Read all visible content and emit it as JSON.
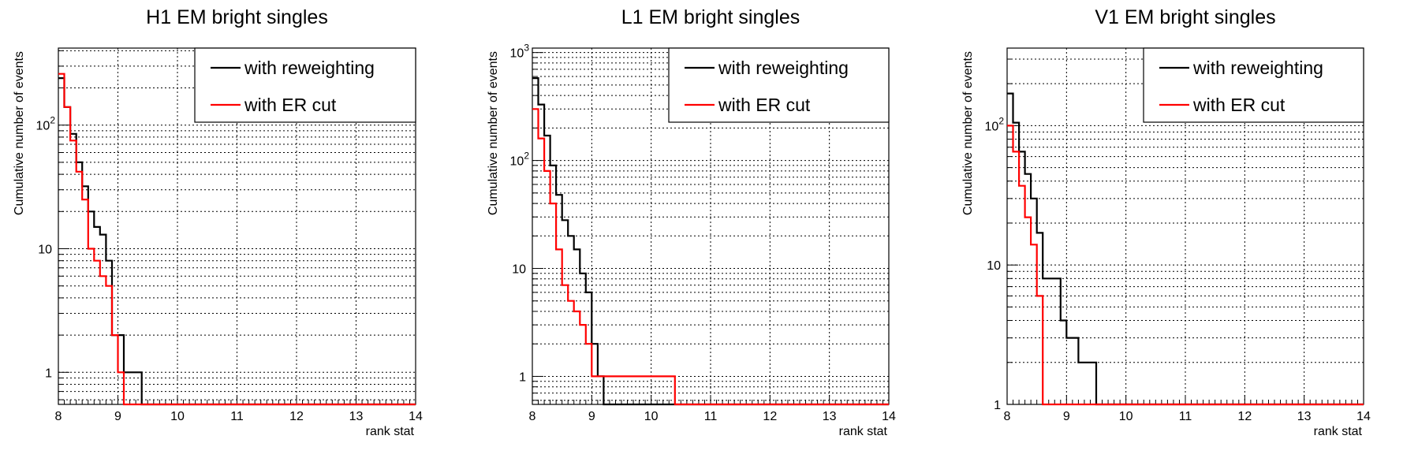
{
  "figure": {
    "colors": {
      "with_reweighting": "#000000",
      "with_er_cut": "#ff0000",
      "grid": "#000000"
    },
    "xlabel": "rank stat",
    "ylabel": "Cumulative number of events"
  },
  "chart_data": [
    {
      "type": "line",
      "step": true,
      "title": "H1 EM bright singles",
      "xlabel": "rank stat",
      "ylabel": "Cumulative number of events",
      "xlim": [
        8,
        14
      ],
      "ylim": [
        0.55,
        420
      ],
      "yscale": "log",
      "grid": true,
      "legend_position": "top-right",
      "xticks": [
        "8",
        "9",
        "10",
        "11",
        "12",
        "13",
        "14"
      ],
      "yticks": [
        {
          "value": 1,
          "label": "1"
        },
        {
          "value": 10,
          "label": "10"
        },
        {
          "value": 100,
          "label": "10",
          "exponent": "2"
        }
      ],
      "series": [
        {
          "name": "with reweighting",
          "color": "#000000",
          "x": [
            8.0,
            8.1,
            8.2,
            8.3,
            8.4,
            8.5,
            8.6,
            8.7,
            8.8,
            8.9,
            9.0,
            9.1,
            9.2,
            9.3,
            9.4
          ],
          "values": [
            240,
            140,
            85,
            50,
            32,
            20,
            15,
            13,
            8,
            2,
            2,
            1,
            1,
            1,
            0
          ]
        },
        {
          "name": "with ER cut",
          "color": "#ff0000",
          "x": [
            8.0,
            8.1,
            8.2,
            8.3,
            8.4,
            8.5,
            8.6,
            8.7,
            8.8,
            8.9,
            9.0,
            9.1
          ],
          "values": [
            260,
            140,
            75,
            42,
            25,
            10,
            8,
            6,
            5,
            2,
            1,
            0
          ]
        }
      ]
    },
    {
      "type": "line",
      "step": true,
      "title": "L1 EM bright singles",
      "xlabel": "rank stat",
      "ylabel": "Cumulative number of events",
      "xlim": [
        8,
        14
      ],
      "ylim": [
        0.55,
        1100
      ],
      "yscale": "log",
      "grid": true,
      "legend_position": "top-right",
      "xticks": [
        "8",
        "9",
        "10",
        "11",
        "12",
        "13",
        "14"
      ],
      "yticks": [
        {
          "value": 1,
          "label": "1"
        },
        {
          "value": 10,
          "label": "10"
        },
        {
          "value": 100,
          "label": "10",
          "exponent": "2"
        },
        {
          "value": 1000,
          "label": "10",
          "exponent": "3"
        }
      ],
      "series": [
        {
          "name": "with reweighting",
          "color": "#000000",
          "x": [
            8.0,
            8.1,
            8.2,
            8.3,
            8.4,
            8.5,
            8.6,
            8.7,
            8.8,
            8.9,
            9.0,
            9.1,
            9.2
          ],
          "values": [
            580,
            330,
            170,
            90,
            48,
            28,
            20,
            15,
            9,
            6,
            2,
            1,
            0
          ]
        },
        {
          "name": "with ER cut",
          "color": "#ff0000",
          "x": [
            8.0,
            8.1,
            8.2,
            8.3,
            8.4,
            8.5,
            8.6,
            8.7,
            8.8,
            8.9,
            9.0,
            9.1,
            10.4
          ],
          "values": [
            300,
            160,
            80,
            40,
            15,
            7,
            5,
            4,
            3,
            2,
            1,
            1,
            0
          ]
        }
      ]
    },
    {
      "type": "line",
      "step": true,
      "title": "V1 EM bright singles",
      "xlabel": "rank stat",
      "ylabel": "Cumulative number of events",
      "xlim": [
        8,
        14
      ],
      "ylim": [
        1,
        360
      ],
      "yscale": "log",
      "grid": true,
      "legend_position": "top-right",
      "xticks": [
        "8",
        "9",
        "10",
        "11",
        "12",
        "13",
        "14"
      ],
      "yticks": [
        {
          "value": 1,
          "label": "1"
        },
        {
          "value": 10,
          "label": "10"
        },
        {
          "value": 100,
          "label": "10",
          "exponent": "2"
        }
      ],
      "series": [
        {
          "name": "with reweighting",
          "color": "#000000",
          "x": [
            8.0,
            8.1,
            8.2,
            8.3,
            8.4,
            8.5,
            8.6,
            8.7,
            8.8,
            8.9,
            9.0,
            9.1,
            9.2,
            9.3,
            9.4,
            9.5
          ],
          "values": [
            170,
            105,
            65,
            45,
            30,
            17,
            8,
            8,
            8,
            4,
            3,
            3,
            2,
            2,
            2,
            0
          ]
        },
        {
          "name": "with ER cut",
          "color": "#ff0000",
          "x": [
            8.0,
            8.1,
            8.2,
            8.3,
            8.4,
            8.5,
            8.6
          ],
          "values": [
            100,
            65,
            37,
            22,
            14,
            6,
            0
          ]
        }
      ]
    }
  ]
}
